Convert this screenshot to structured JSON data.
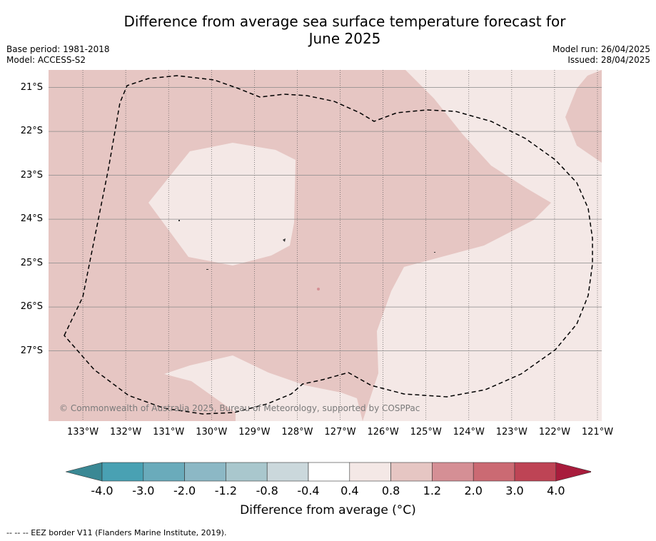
{
  "title": "Difference from average sea surface temperature forecast for June 2025",
  "title_line1": "Difference from average sea surface temperature forecast for",
  "title_line2": "June 2025",
  "base_period": "Base period: 1981-2018",
  "model": "Model: ACCESS-S2",
  "model_run": "Model run: 26/04/2025",
  "issued": "Issued: 28/04/2025",
  "copyright": "© Commonwealth of Australia 2025, Bureau of Meteorology, supported by COSPPac",
  "map": {
    "lon_range": [
      -133.8,
      -120.9
    ],
    "lat_range": [
      -28.6,
      -20.6
    ],
    "lat_ticks": [
      {
        "value": -21,
        "label": "21°S"
      },
      {
        "value": -22,
        "label": "22°S"
      },
      {
        "value": -23,
        "label": "23°S"
      },
      {
        "value": -24,
        "label": "24°S"
      },
      {
        "value": -25,
        "label": "25°S"
      },
      {
        "value": -26,
        "label": "26°S"
      },
      {
        "value": -27,
        "label": "27°S"
      }
    ],
    "lon_ticks": [
      {
        "value": -133,
        "label": "133°W"
      },
      {
        "value": -132,
        "label": "132°W"
      },
      {
        "value": -131,
        "label": "131°W"
      },
      {
        "value": -130,
        "label": "130°W"
      },
      {
        "value": -129,
        "label": "129°W"
      },
      {
        "value": -128,
        "label": "128°W"
      },
      {
        "value": -127,
        "label": "127°W"
      },
      {
        "value": -126,
        "label": "126°W"
      },
      {
        "value": -125,
        "label": "125°W"
      },
      {
        "value": -124,
        "label": "124°W"
      },
      {
        "value": -123,
        "label": "123°W"
      },
      {
        "value": -122,
        "label": "122°W"
      },
      {
        "value": -121,
        "label": "121°W"
      }
    ],
    "fill_colors": {
      "range_0.8_1.2": "#e6c6c3",
      "range_0.4_0.8": "#f4e8e6"
    },
    "eez_border_style": "dashed black"
  },
  "colorbar": {
    "title": "Difference from average (°C)",
    "labels": [
      "-4.0",
      "-3.0",
      "-2.0",
      "-1.2",
      "-0.8",
      "-0.4",
      "0.4",
      "0.8",
      "1.2",
      "2.0",
      "3.0",
      "4.0"
    ],
    "colors": [
      "#3a8894",
      "#49a1b3",
      "#6aabbb",
      "#8cb8c5",
      "#a9c7cd",
      "#cbd8dc",
      "#ffffff",
      "#f4e8e6",
      "#e6c6c3",
      "#d58f95",
      "#cb6a73",
      "#be4455",
      "#a81c3c"
    ]
  },
  "footer": "--  --  -- EEZ border V11 (Flanders Marine Institute, 2019)."
}
